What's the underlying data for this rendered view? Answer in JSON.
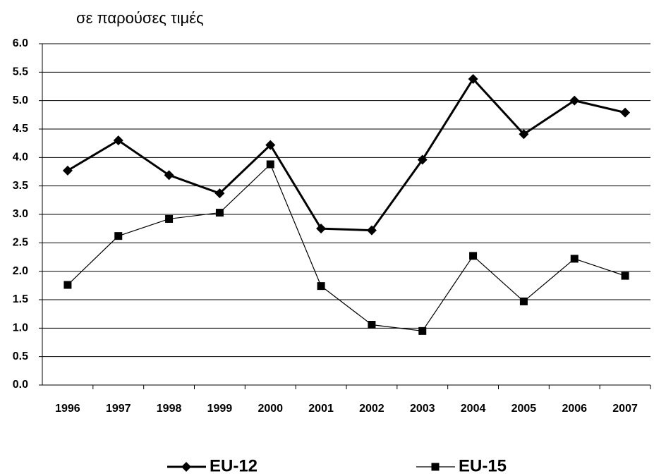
{
  "chart_data": {
    "type": "line",
    "subtitle": "σε παρούσες τιμές",
    "categories": [
      "1996",
      "1997",
      "1998",
      "1999",
      "2000",
      "2001",
      "2002",
      "2003",
      "2004",
      "2005",
      "2006",
      "2007"
    ],
    "series": [
      {
        "name": "EU-12",
        "color": "#000000",
        "marker": "diamond",
        "values": [
          3.77,
          4.3,
          3.69,
          3.37,
          4.22,
          2.75,
          2.72,
          3.96,
          5.38,
          4.41,
          5.0,
          4.79
        ]
      },
      {
        "name": "EU-15",
        "color": "#000000",
        "marker": "square",
        "values": [
          1.76,
          2.62,
          2.92,
          3.03,
          3.88,
          1.74,
          1.06,
          0.95,
          2.27,
          1.47,
          2.22,
          1.92
        ]
      }
    ],
    "ylim": [
      0,
      6
    ],
    "yticks": [
      {
        "value": 0,
        "label": "0.0"
      },
      0.5,
      {
        "value": 1,
        "label": "1.0"
      },
      1.5,
      {
        "value": 2,
        "label": "2.0"
      },
      2.5,
      {
        "value": 3,
        "label": "3.0"
      },
      3.5,
      {
        "value": 4,
        "label": "4.0"
      },
      4.5,
      {
        "value": 5,
        "label": "5.0"
      },
      5.5,
      {
        "value": 6,
        "label": "6.0"
      }
    ],
    "grid": true,
    "legend": "bottom"
  }
}
